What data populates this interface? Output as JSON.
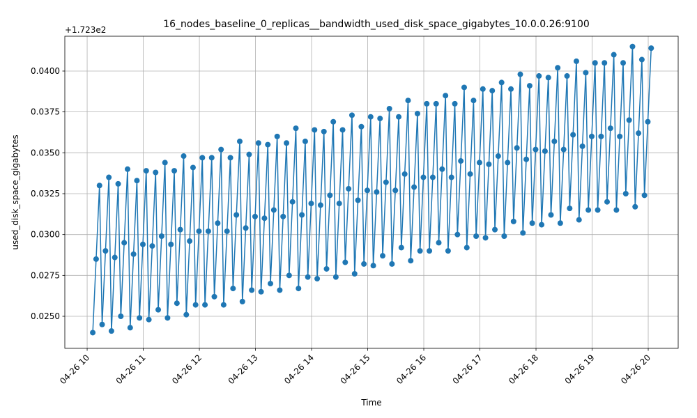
{
  "chart_data": {
    "type": "line",
    "title": "16_nodes_baseline_0_replicas__bandwidth_used_disk_space_gigabytes_10.0.0.26:9100",
    "x_label": "Time",
    "y_label": "used_disk_space_gigabytes",
    "y_offset_label": "+1.723e2",
    "grid": true,
    "marker": "o",
    "xlim": [
      9.602,
      20.534
    ],
    "xticks": [
      {
        "value": 10,
        "label": "04-26 10"
      },
      {
        "value": 11,
        "label": "04-26 11"
      },
      {
        "value": 12,
        "label": "04-26 12"
      },
      {
        "value": 13,
        "label": "04-26 13"
      },
      {
        "value": 14,
        "label": "04-26 14"
      },
      {
        "value": 15,
        "label": "04-26 15"
      },
      {
        "value": 16,
        "label": "04-26 16"
      },
      {
        "value": 17,
        "label": "04-26 17"
      },
      {
        "value": 18,
        "label": "04-26 18"
      },
      {
        "value": 19,
        "label": "04-26 19"
      },
      {
        "value": 20,
        "label": "04-26 20"
      }
    ],
    "ylim": [
      0.02304,
      0.04213
    ],
    "yticks": [
      {
        "value": 0.025,
        "label": "0.0250"
      },
      {
        "value": 0.0275,
        "label": "0.0275"
      },
      {
        "value": 0.03,
        "label": "0.0300"
      },
      {
        "value": 0.0325,
        "label": "0.0325"
      },
      {
        "value": 0.035,
        "label": "0.0350"
      },
      {
        "value": 0.0375,
        "label": "0.0375"
      },
      {
        "value": 0.04,
        "label": "0.0400"
      }
    ],
    "x": [
      10.1,
      10.16,
      10.22,
      10.267,
      10.327,
      10.387,
      10.433,
      10.493,
      10.553,
      10.6,
      10.66,
      10.72,
      10.767,
      10.827,
      10.887,
      10.933,
      10.993,
      11.053,
      11.1,
      11.16,
      11.22,
      11.267,
      11.327,
      11.387,
      11.433,
      11.493,
      11.553,
      11.6,
      11.66,
      11.72,
      11.767,
      11.827,
      11.887,
      11.933,
      11.993,
      12.053,
      12.1,
      12.16,
      12.22,
      12.267,
      12.327,
      12.387,
      12.433,
      12.493,
      12.553,
      12.6,
      12.66,
      12.72,
      12.767,
      12.827,
      12.887,
      12.933,
      12.993,
      13.053,
      13.1,
      13.16,
      13.22,
      13.267,
      13.327,
      13.387,
      13.433,
      13.493,
      13.553,
      13.6,
      13.66,
      13.72,
      13.767,
      13.827,
      13.887,
      13.933,
      13.993,
      14.053,
      14.1,
      14.16,
      14.22,
      14.267,
      14.327,
      14.387,
      14.433,
      14.493,
      14.553,
      14.6,
      14.66,
      14.72,
      14.767,
      14.827,
      14.887,
      14.933,
      14.993,
      15.053,
      15.1,
      15.16,
      15.22,
      15.267,
      15.327,
      15.387,
      15.433,
      15.493,
      15.553,
      15.6,
      15.66,
      15.72,
      15.767,
      15.827,
      15.887,
      15.933,
      15.993,
      16.053,
      16.1,
      16.16,
      16.22,
      16.267,
      16.327,
      16.387,
      16.433,
      16.493,
      16.553,
      16.6,
      16.66,
      16.72,
      16.767,
      16.827,
      16.887,
      16.933,
      16.993,
      17.053,
      17.1,
      17.16,
      17.22,
      17.267,
      17.327,
      17.387,
      17.433,
      17.493,
      17.553,
      17.6,
      17.66,
      17.72,
      17.767,
      17.827,
      17.887,
      17.933,
      17.993,
      18.053,
      18.1,
      18.16,
      18.22,
      18.267,
      18.327,
      18.387,
      18.433,
      18.493,
      18.553,
      18.6,
      18.66,
      18.72,
      18.767,
      18.827,
      18.887,
      18.933,
      18.993,
      19.053,
      19.1,
      19.16,
      19.22,
      19.267,
      19.327,
      19.387,
      19.433,
      19.493,
      19.553,
      19.6,
      19.66,
      19.72,
      19.767,
      19.827,
      19.887,
      19.933,
      19.993,
      20.053
    ],
    "series": [
      {
        "name": "used_disk_space_gigabytes",
        "color": "#1f77b4",
        "values": [
          0.024,
          0.0285,
          0.033,
          0.0245,
          0.029,
          0.0335,
          0.0241,
          0.0286,
          0.0331,
          0.025,
          0.0295,
          0.034,
          0.0243,
          0.0288,
          0.0333,
          0.0249,
          0.0294,
          0.0339,
          0.0248,
          0.0293,
          0.0338,
          0.0254,
          0.0299,
          0.0344,
          0.0249,
          0.0294,
          0.0339,
          0.0258,
          0.0303,
          0.0348,
          0.0251,
          0.0296,
          0.0341,
          0.0257,
          0.0302,
          0.0347,
          0.0257,
          0.0302,
          0.0347,
          0.0262,
          0.0307,
          0.0352,
          0.0257,
          0.0302,
          0.0347,
          0.0267,
          0.0312,
          0.0357,
          0.0259,
          0.0304,
          0.0349,
          0.0266,
          0.0311,
          0.0356,
          0.0265,
          0.031,
          0.0355,
          0.027,
          0.0315,
          0.036,
          0.0266,
          0.0311,
          0.0356,
          0.0275,
          0.032,
          0.0365,
          0.0267,
          0.0312,
          0.0357,
          0.0274,
          0.0319,
          0.0364,
          0.0273,
          0.0318,
          0.0363,
          0.0279,
          0.0324,
          0.0369,
          0.0274,
          0.0319,
          0.0364,
          0.0283,
          0.0328,
          0.0373,
          0.0276,
          0.0321,
          0.0366,
          0.0282,
          0.0327,
          0.0372,
          0.0281,
          0.0326,
          0.0371,
          0.0287,
          0.0332,
          0.0377,
          0.0282,
          0.0327,
          0.0372,
          0.0292,
          0.0337,
          0.0382,
          0.0284,
          0.0329,
          0.0374,
          0.029,
          0.0335,
          0.038,
          0.029,
          0.0335,
          0.038,
          0.0295,
          0.034,
          0.0385,
          0.029,
          0.0335,
          0.038,
          0.03,
          0.0345,
          0.039,
          0.0292,
          0.0337,
          0.0382,
          0.0299,
          0.0344,
          0.0389,
          0.0298,
          0.0343,
          0.0388,
          0.0303,
          0.0348,
          0.0393,
          0.0299,
          0.0344,
          0.0389,
          0.0308,
          0.0353,
          0.0398,
          0.0301,
          0.0346,
          0.0391,
          0.0307,
          0.0352,
          0.0397,
          0.0306,
          0.0351,
          0.0396,
          0.0312,
          0.0357,
          0.0402,
          0.0307,
          0.0352,
          0.0397,
          0.0316,
          0.0361,
          0.0406,
          0.0309,
          0.0354,
          0.0399,
          0.0315,
          0.036,
          0.0405,
          0.0315,
          0.036,
          0.0405,
          0.032,
          0.0365,
          0.041,
          0.0315,
          0.036,
          0.0405,
          0.0325,
          0.037,
          0.0415,
          0.0317,
          0.0362,
          0.0407,
          0.0324,
          0.0369,
          0.0414
        ]
      }
    ]
  }
}
